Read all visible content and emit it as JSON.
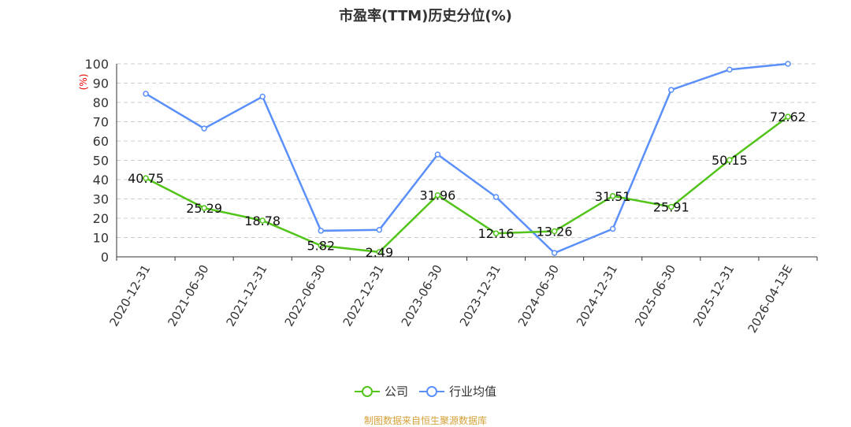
{
  "chart_data": {
    "type": "line",
    "title": "市盈率(TTM)历史分位(%)",
    "ylabel": "(%)",
    "ylim": [
      0,
      100
    ],
    "yticks": [
      0,
      10,
      20,
      30,
      40,
      50,
      60,
      70,
      80,
      90,
      100
    ],
    "categories": [
      "2020-12-31",
      "2021-06-30",
      "2021-12-31",
      "2022-06-30",
      "2022-12-31",
      "2023-06-30",
      "2023-12-31",
      "2024-06-30",
      "2024-12-31",
      "2025-06-30",
      "2025-12-31",
      "2026-04-13E"
    ],
    "series": [
      {
        "name": "公司",
        "color": "#52c41a",
        "values": [
          40.75,
          25.29,
          18.78,
          5.82,
          2.49,
          31.96,
          12.16,
          13.26,
          31.51,
          25.91,
          50.15,
          72.62
        ],
        "labels": [
          "40.75",
          "25.29",
          "18.78",
          "5.82",
          "2.49",
          "31.96",
          "12.16",
          "13.26",
          "31.51",
          "25.91",
          "50.15",
          "72.62"
        ]
      },
      {
        "name": "行业均值",
        "color": "#5b8ff9",
        "values": [
          84.5,
          66.5,
          83,
          13.5,
          14,
          53,
          31,
          2,
          14.5,
          86.5,
          97,
          100
        ]
      }
    ],
    "grid": true,
    "legend_position": "bottom"
  },
  "footer": "制图数据来自恒生聚源数据库"
}
